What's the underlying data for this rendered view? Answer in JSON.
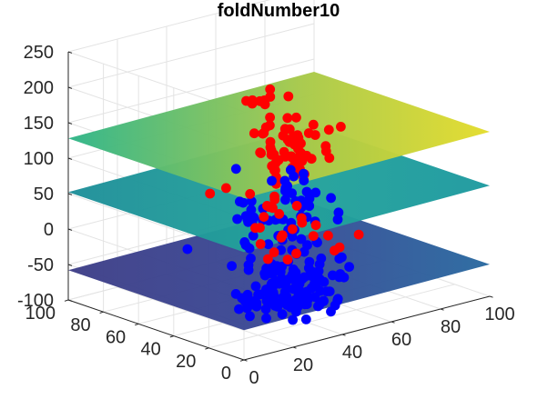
{
  "chart_data": {
    "type": "scatter3d",
    "title": "foldNumber10",
    "xlabel": "",
    "ylabel": "",
    "zlabel": "",
    "xlim": [
      0,
      100
    ],
    "ylim": [
      0,
      100
    ],
    "zlim": [
      -100,
      250
    ],
    "x_ticks": [
      "0",
      "20",
      "40",
      "60",
      "80",
      "100"
    ],
    "y_ticks": [
      "0",
      "20",
      "40",
      "60",
      "80",
      "100"
    ],
    "z_ticks": [
      "-100",
      "-50",
      "0",
      "50",
      "100",
      "150",
      "200",
      "250"
    ],
    "grid": true,
    "planes": [
      {
        "z_low": 128,
        "z_high": 132,
        "colormap": "parula-upper"
      },
      {
        "z_low": 52,
        "z_high": 56,
        "colormap": "parula-mid"
      },
      {
        "z_low": -58,
        "z_high": -55,
        "colormap": "parula-low"
      }
    ],
    "series": [
      {
        "color": "#ff0000",
        "z_range": [
          0,
          160
        ]
      },
      {
        "color": "#0000ff",
        "z_range": [
          -115,
          60
        ]
      }
    ]
  }
}
